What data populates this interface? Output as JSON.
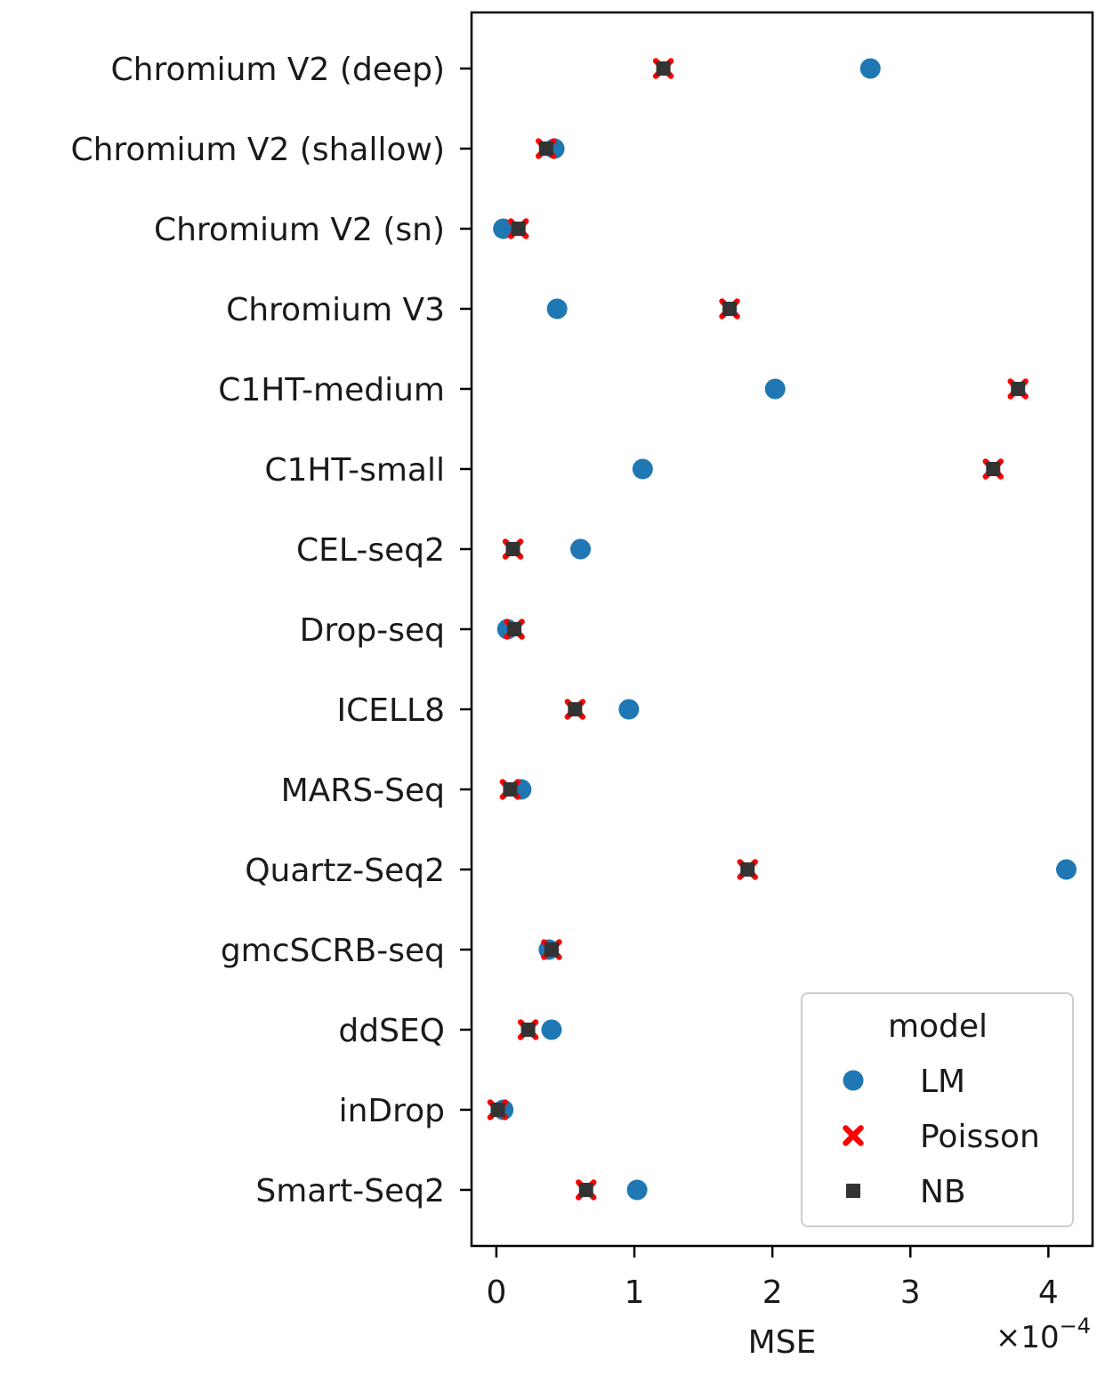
{
  "chart_data": {
    "type": "scatter",
    "title": "",
    "xlabel": "MSE",
    "ylabel": "",
    "x_scale_label": "×10",
    "x_scale_exponent": "−4",
    "x_scale_factor": 0.0001,
    "xlim": [
      -0.18,
      4.32
    ],
    "xticks": [
      0,
      1,
      2,
      3,
      4
    ],
    "xtick_labels": [
      "0",
      "1",
      "2",
      "3",
      "4"
    ],
    "grid": false,
    "legend": {
      "title": "model",
      "placement": "bottom-right"
    },
    "categories": [
      "Chromium V2 (deep)",
      "Chromium V2 (shallow)",
      "Chromium V2 (sn)",
      "Chromium V3",
      "C1HT-medium",
      "C1HT-small",
      "CEL-seq2",
      "Drop-seq",
      "ICELL8",
      "MARS-Seq",
      "Quartz-Seq2",
      "gmcSCRB-seq",
      "ddSEQ",
      "inDrop",
      "Smart-Seq2"
    ],
    "series": [
      {
        "name": "LM",
        "marker": "circle",
        "color": "#1f77b4",
        "values": [
          2.71,
          0.42,
          0.05,
          0.44,
          2.02,
          1.06,
          0.61,
          0.08,
          0.96,
          0.18,
          4.13,
          0.38,
          0.4,
          0.05,
          1.02
        ]
      },
      {
        "name": "Poisson",
        "marker": "x",
        "color": "#ff0000",
        "values": [
          1.21,
          0.36,
          0.16,
          1.69,
          3.78,
          3.6,
          0.12,
          0.13,
          0.57,
          0.1,
          1.82,
          0.4,
          0.23,
          0.01,
          0.65
        ]
      },
      {
        "name": "NB",
        "marker": "square",
        "color": "#333333",
        "values": [
          1.21,
          0.36,
          0.16,
          1.69,
          3.78,
          3.6,
          0.12,
          0.13,
          0.57,
          0.1,
          1.82,
          0.4,
          0.23,
          0.01,
          0.65
        ]
      }
    ]
  }
}
